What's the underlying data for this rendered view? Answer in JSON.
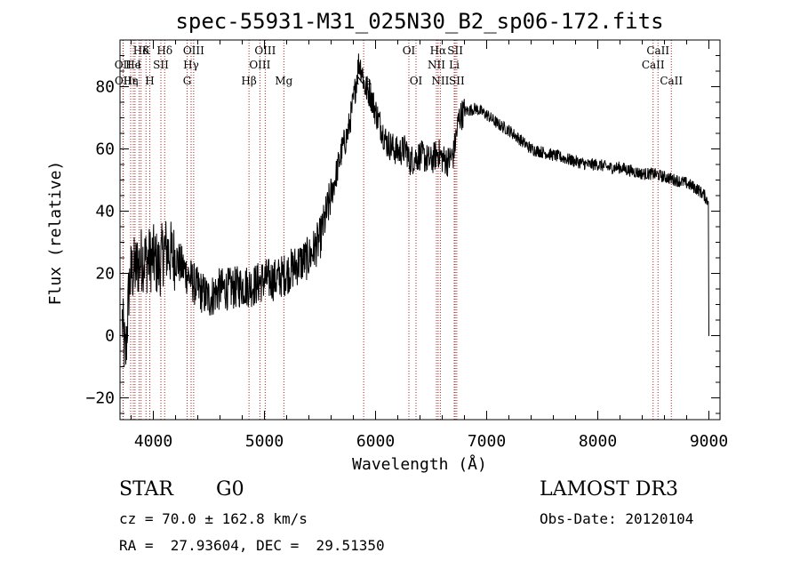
{
  "chart_data": {
    "type": "line",
    "title": "spec-55931-M31_025N30_B2_sp06-172.fits",
    "xlabel": "Wavelength (Å)",
    "ylabel": "Flux (relative)",
    "xlim": [
      3700,
      9100
    ],
    "ylim": [
      -27,
      95
    ],
    "xticks": [
      4000,
      5000,
      6000,
      7000,
      8000,
      9000
    ],
    "yticks": [
      -20,
      0,
      20,
      40,
      60,
      80
    ],
    "xtick_labels": [
      "4000",
      "5000",
      "6000",
      "7000",
      "8000",
      "9000"
    ],
    "ytick_labels": [
      "−20",
      "0",
      "20",
      "40",
      "60",
      "80"
    ],
    "grid": false,
    "series": [
      {
        "x": [
          3720,
          3750,
          3780,
          3800,
          3850,
          3900,
          3950,
          4000,
          4050,
          4100,
          4200,
          4300,
          4400,
          4500,
          4600,
          4700,
          4800,
          4900,
          5000,
          5100,
          5200,
          5300,
          5400,
          5500,
          5600,
          5700,
          5750,
          5800,
          5850,
          5880,
          5900,
          5950,
          6000,
          6050,
          6100,
          6200,
          6280,
          6300,
          6400,
          6500,
          6560,
          6600,
          6650,
          6700,
          6750,
          6800,
          6900,
          7000,
          7100,
          7200,
          7300,
          7400,
          7500,
          7600,
          7700,
          7800,
          7900,
          8000,
          8100,
          8200,
          8300,
          8400,
          8500,
          8600,
          8700,
          8800,
          8900,
          8960,
          8990,
          9000
        ],
        "y": [
          5,
          -8,
          15,
          20,
          22,
          25,
          24,
          25,
          22,
          28,
          25,
          20,
          15,
          12,
          15,
          15,
          16,
          16,
          18,
          18,
          20,
          23,
          25,
          31,
          45,
          60,
          65,
          75,
          88,
          85,
          80,
          78,
          72,
          67,
          62,
          59,
          60,
          56,
          58,
          56,
          59,
          57,
          56,
          58,
          70,
          72,
          73,
          71,
          68,
          66,
          63,
          60,
          59,
          58,
          57,
          56,
          55,
          55,
          54,
          54,
          53,
          52,
          52,
          51,
          50,
          49,
          47,
          45,
          43,
          0
        ]
      }
    ],
    "lines": [
      {
        "label": "Hδ",
        "x": 3889,
        "row": 1
      },
      {
        "label": "OII",
        "x": 3727,
        "row": 2
      },
      {
        "label": "OII",
        "x": 3729,
        "row": 3
      },
      {
        "label": "Hε",
        "x": 3796,
        "row": 3
      },
      {
        "label": "He",
        "x": 3820,
        "row": 2
      },
      {
        "label": "η",
        "x": 3835,
        "row": 3
      },
      {
        "label": "K",
        "x": 3934,
        "row": 1
      },
      {
        "label": "SII",
        "x": 4068,
        "row": 2
      },
      {
        "label": "I",
        "x": 3872,
        "row": 2
      },
      {
        "label": "H",
        "x": 3968,
        "row": 3
      },
      {
        "label": "Hδ",
        "x": 4102,
        "row": 1
      },
      {
        "label": "OIII",
        "x": 4363,
        "row": 1
      },
      {
        "label": "Hγ",
        "x": 4340,
        "row": 2
      },
      {
        "label": "G",
        "x": 4304,
        "row": 3
      },
      {
        "label": "Hβ",
        "x": 4861,
        "row": 3
      },
      {
        "label": "OIII",
        "x": 5007,
        "row": 1
      },
      {
        "label": "OIII",
        "x": 4959,
        "row": 2
      },
      {
        "label": "Mg",
        "x": 5175,
        "row": 3
      },
      {
        "label": "Na",
        "x": 5893,
        "row": 3
      },
      {
        "label": "OI",
        "x": 6300,
        "row": 1
      },
      {
        "label": "OI",
        "x": 6364,
        "row": 3
      },
      {
        "label": "Hα",
        "x": 6563,
        "row": 1
      },
      {
        "label": "NII",
        "x": 6548,
        "row": 2
      },
      {
        "label": "NII",
        "x": 6583,
        "row": 3
      },
      {
        "label": "SII",
        "x": 6717,
        "row": 1
      },
      {
        "label": "Li",
        "x": 6708,
        "row": 2
      },
      {
        "label": "SII",
        "x": 6731,
        "row": 3
      },
      {
        "label": "CaII",
        "x": 8542,
        "row": 1
      },
      {
        "label": "CaII",
        "x": 8498,
        "row": 2
      },
      {
        "label": "CaII",
        "x": 8662,
        "row": 3
      }
    ]
  },
  "info": {
    "class": "STAR",
    "subclass": "G0",
    "survey": "LAMOST DR3",
    "cz": "cz = 70.0 ± 162.8 km/s",
    "obs_date": "Obs-Date: 20120104",
    "radec": "RA =  27.93604, DEC =  29.51350"
  }
}
